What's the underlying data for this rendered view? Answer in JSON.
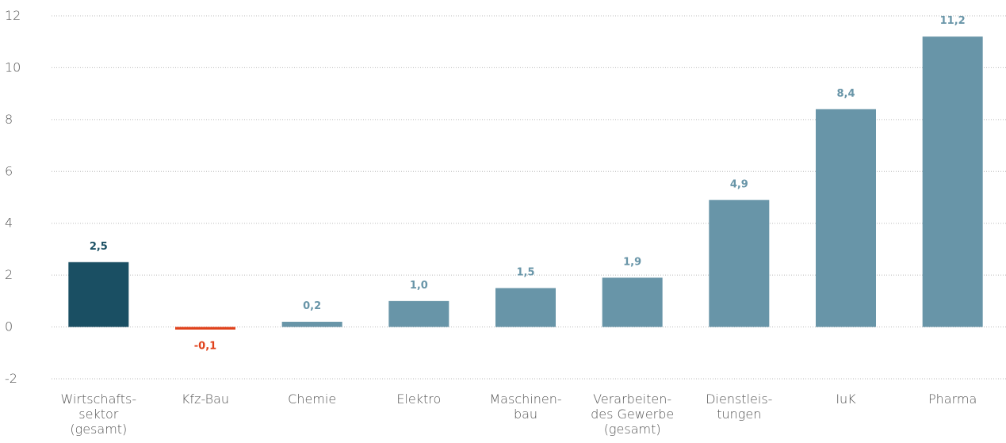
{
  "chart_data": {
    "type": "bar",
    "categories": [
      "Wirtschafts-\nsektor\n(gesamt)",
      "Kfz-Bau",
      "Chemie",
      "Elektro",
      "Maschinen-\nbau",
      "Verarbeiten-\ndes Gewerbe\n(gesamt)",
      "Dienstleis-\ntungen",
      "IuK",
      "Pharma"
    ],
    "values": [
      2.5,
      -0.1,
      0.2,
      1.0,
      1.5,
      1.9,
      4.9,
      8.4,
      11.2
    ],
    "value_labels": [
      "2,5",
      "-0,1",
      "0,2",
      "1,0",
      "1,5",
      "1,9",
      "4,9",
      "8,4",
      "11,2"
    ],
    "colors": [
      "#1a4f63",
      "#e0401a",
      "#6895a8",
      "#6895a8",
      "#6895a8",
      "#6895a8",
      "#6895a8",
      "#6895a8",
      "#6895a8"
    ],
    "ylim": [
      -2,
      12
    ],
    "yticks": [
      -2,
      0,
      2,
      4,
      6,
      8,
      10,
      12
    ],
    "grid": true
  }
}
